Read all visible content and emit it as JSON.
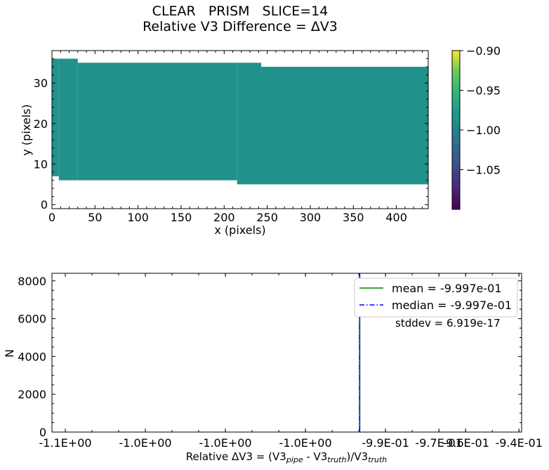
{
  "figure": {
    "title_line1": "CLEAR   PRISM   SLICE=14",
    "title_line2": "Relative V3 Difference = ΔV3"
  },
  "chart_data": [
    {
      "type": "heatmap",
      "xlabel": "x (pixels)",
      "ylabel": "y (pixels)",
      "xlim": [
        0,
        437
      ],
      "ylim": [
        -1,
        38
      ],
      "xticks": [
        0,
        50,
        100,
        150,
        200,
        250,
        300,
        350,
        400
      ],
      "yticks": [
        0,
        10,
        20,
        30
      ],
      "fill_value": -0.9997,
      "fill_color": "#21918c",
      "colormap": "viridis",
      "colorbar": {
        "range": [
          -1.1,
          -0.9
        ],
        "ticks": [
          -0.9,
          -0.95,
          -1.0,
          -1.05
        ],
        "tick_labels": [
          "−0.90",
          "−0.95",
          "−1.00",
          "−1.05"
        ]
      },
      "region_columns": [
        {
          "x": [
            0,
            8
          ],
          "y": [
            7,
            36
          ]
        },
        {
          "x": [
            8,
            30
          ],
          "y": [
            6,
            36
          ]
        },
        {
          "x": [
            30,
            215
          ],
          "y": [
            6,
            35
          ]
        },
        {
          "x": [
            215,
            243
          ],
          "y": [
            5,
            35
          ]
        },
        {
          "x": [
            243,
            437
          ],
          "y": [
            5,
            34
          ]
        }
      ]
    },
    {
      "type": "histogram",
      "xlabel_parts": [
        {
          "text": "Relative ΔV3 = (V3",
          "sub": false
        },
        {
          "text": "pipe",
          "sub": true
        },
        {
          "text": " - V3",
          "sub": false
        },
        {
          "text": "truth",
          "sub": true
        },
        {
          "text": ")/V3",
          "sub": false
        },
        {
          "text": "truth",
          "sub": true
        }
      ],
      "ylabel": "N",
      "xlim": [
        -1.115,
        -0.939
      ],
      "ylim": [
        0,
        8400
      ],
      "x_tick_values": [
        -1.11,
        -1.08,
        -1.05,
        -1.02,
        -0.99,
        -0.97,
        -0.96,
        -0.94
      ],
      "x_tick_labels": [
        "-1.1E+00",
        "-1.0E+00",
        "-1.0E+00",
        "-1.0E+00",
        "-9.9E-01",
        "-9.7E-01",
        "-9.6E-01",
        "-9.4E-01"
      ],
      "yticks": [
        0,
        2000,
        4000,
        6000,
        8000
      ],
      "bins": [
        {
          "x": -0.9997,
          "count": 8400
        }
      ],
      "mean": -0.9997,
      "median": -0.9997,
      "lines": [
        {
          "name": "mean = -9.997e-01",
          "value": -0.9997,
          "color": "#008000",
          "style": "solid"
        },
        {
          "name": "median = -9.997e-01",
          "value": -0.9997,
          "color": "#0000ff",
          "style": "dashdot"
        }
      ],
      "stddev_text": "stddev = 6.919e-17",
      "legend_position": "top-right"
    }
  ]
}
